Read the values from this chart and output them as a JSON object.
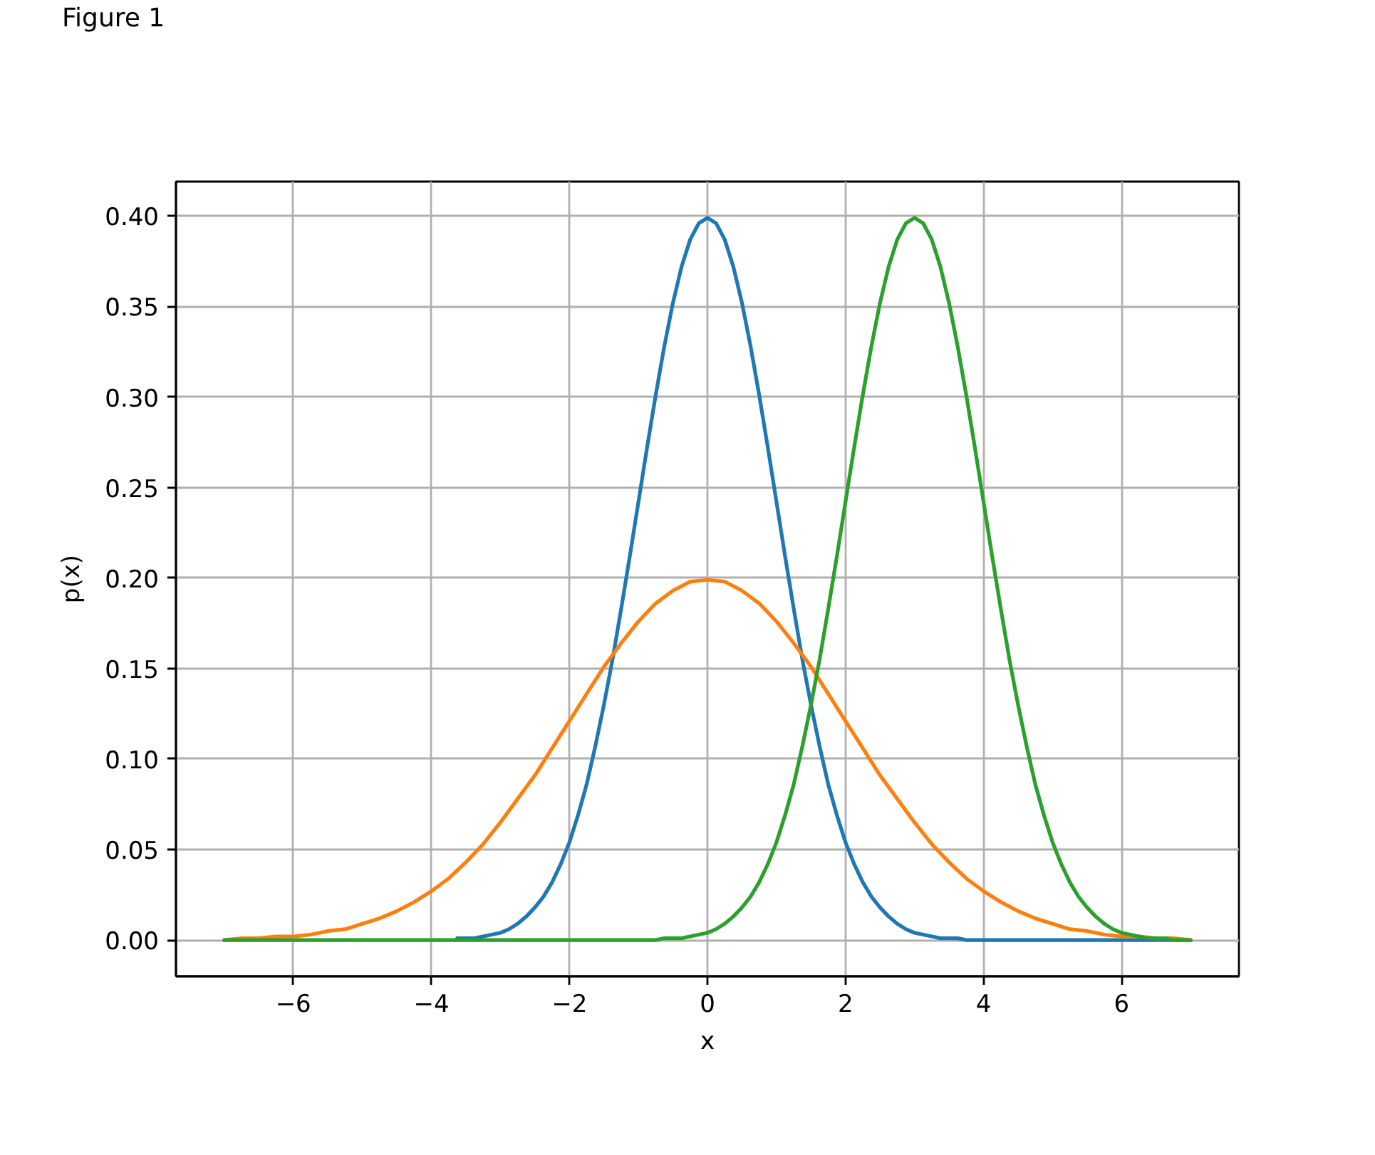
{
  "chart_data": {
    "type": "line",
    "annotations": [
      "Figure 1"
    ],
    "xlabel": "x",
    "ylabel": "p(x)",
    "x": [
      -7,
      -6.875,
      -6.75,
      -6.625,
      -6.5,
      -6.375,
      -6.25,
      -6.125,
      -6,
      -5.875,
      -5.75,
      -5.625,
      -5.5,
      -5.375,
      -5.25,
      -5.125,
      -5,
      -4.875,
      -4.75,
      -4.625,
      -4.5,
      -4.375,
      -4.25,
      -4.125,
      -4,
      -3.875,
      -3.75,
      -3.625,
      -3.5,
      -3.375,
      -3.25,
      -3.125,
      -3,
      -2.875,
      -2.75,
      -2.625,
      -2.5,
      -2.375,
      -2.25,
      -2.125,
      -2,
      -1.875,
      -1.75,
      -1.625,
      -1.5,
      -1.375,
      -1.25,
      -1.125,
      -1,
      -0.875,
      -0.75,
      -0.625,
      -0.5,
      -0.375,
      -0.25,
      -0.125,
      0,
      0.125,
      0.25,
      0.375,
      0.5,
      0.625,
      0.75,
      0.875,
      1,
      1.125,
      1.25,
      1.375,
      1.5,
      1.625,
      1.75,
      1.875,
      2,
      2.125,
      2.25,
      2.375,
      2.5,
      2.625,
      2.75,
      2.875,
      3,
      3.125,
      3.25,
      3.375,
      3.5,
      3.625,
      3.75,
      3.875,
      4,
      4.125,
      4.25,
      4.375,
      4.5,
      4.625,
      4.75,
      4.875,
      5,
      5.125,
      5.25,
      5.375,
      5.5,
      5.625,
      5.75,
      5.875,
      6,
      6.125,
      6.25,
      6.375,
      6.5,
      6.625,
      6.75,
      6.875,
      7
    ],
    "series": [
      {
        "color": "#1f77b4",
        "values": [
          null,
          null,
          null,
          null,
          null,
          null,
          null,
          null,
          null,
          null,
          null,
          null,
          null,
          null,
          null,
          null,
          null,
          null,
          null,
          null,
          null,
          null,
          null,
          null,
          null,
          null,
          null,
          0.001,
          0.001,
          0.001,
          0.002,
          0.003,
          0.004,
          0.006,
          0.009,
          0.013,
          0.018,
          0.024,
          0.032,
          0.042,
          0.054,
          0.069,
          0.086,
          0.107,
          0.13,
          0.155,
          0.183,
          0.212,
          0.242,
          0.272,
          0.301,
          0.328,
          0.352,
          0.372,
          0.387,
          0.396,
          0.399,
          0.396,
          0.387,
          0.372,
          0.352,
          0.328,
          0.301,
          0.272,
          0.242,
          0.212,
          0.183,
          0.155,
          0.13,
          0.107,
          0.086,
          0.069,
          0.054,
          0.042,
          0.032,
          0.024,
          0.018,
          0.013,
          0.009,
          0.006,
          0.004,
          0.003,
          0.002,
          0.001,
          0.001,
          0.001,
          0,
          0,
          0,
          0,
          0,
          0,
          0,
          0,
          0,
          0,
          0,
          0,
          0,
          0,
          0,
          0,
          0,
          0,
          0,
          0,
          0,
          0,
          0,
          0,
          0,
          0,
          0
        ]
      },
      {
        "color": "#ff7f0e",
        "x": [
          -7,
          -6.75,
          -6.5,
          -6.25,
          -6,
          -5.75,
          -5.5,
          -5.25,
          -5,
          -4.75,
          -4.5,
          -4.25,
          -4,
          -3.75,
          -3.5,
          -3.25,
          -3,
          -2.75,
          -2.5,
          -2.25,
          -2,
          -1.75,
          -1.5,
          -1.25,
          -1,
          -0.75,
          -0.5,
          -0.25,
          0,
          0.25,
          0.5,
          0.75,
          1,
          1.25,
          1.5,
          1.75,
          2,
          2.25,
          2.5,
          2.75,
          3,
          3.25,
          3.5,
          3.75,
          4,
          4.25,
          4.5,
          4.75,
          5,
          5.25,
          5.5,
          5.75,
          6,
          6.25,
          6.5,
          6.75,
          7
        ],
        "values": [
          0,
          0.001,
          0.001,
          0.002,
          0.002,
          0.003,
          0.005,
          0.006,
          0.009,
          0.012,
          0.016,
          0.021,
          0.027,
          0.034,
          0.043,
          0.053,
          0.065,
          0.078,
          0.091,
          0.106,
          0.121,
          0.136,
          0.151,
          0.164,
          0.176,
          0.186,
          0.193,
          0.198,
          0.199,
          0.198,
          0.193,
          0.186,
          0.176,
          0.164,
          0.151,
          0.136,
          0.121,
          0.106,
          0.091,
          0.078,
          0.065,
          0.053,
          0.043,
          0.034,
          0.027,
          0.021,
          0.016,
          0.012,
          0.009,
          0.006,
          0.005,
          0.003,
          0.002,
          0.002,
          0.001,
          0.001,
          0
        ]
      },
      {
        "color": "#2ca02c",
        "values": [
          0,
          0,
          0,
          0,
          0,
          0,
          0,
          0,
          0,
          0,
          0,
          0,
          0,
          0,
          0,
          0,
          0,
          0,
          0,
          0,
          0,
          0,
          0,
          0,
          0,
          0,
          0,
          0,
          0,
          0,
          0,
          0,
          0,
          0,
          0,
          0,
          0,
          0,
          0,
          0,
          0,
          0,
          0,
          0,
          0,
          0,
          0,
          0,
          0,
          0,
          0,
          0.001,
          0.001,
          0.001,
          0.002,
          0.003,
          0.004,
          0.006,
          0.009,
          0.013,
          0.018,
          0.024,
          0.032,
          0.042,
          0.054,
          0.069,
          0.086,
          0.107,
          0.13,
          0.155,
          0.183,
          0.212,
          0.242,
          0.272,
          0.301,
          0.328,
          0.352,
          0.372,
          0.387,
          0.396,
          0.399,
          0.396,
          0.387,
          0.372,
          0.352,
          0.328,
          0.301,
          0.272,
          0.242,
          0.212,
          0.183,
          0.155,
          0.13,
          0.107,
          0.086,
          0.069,
          0.054,
          0.042,
          0.032,
          0.024,
          0.018,
          0.013,
          0.009,
          0.006,
          0.004,
          0.003,
          0.002,
          0.001,
          0.001,
          0.001,
          0,
          0,
          0
        ]
      }
    ],
    "xlim": [
      -7.7,
      7.7
    ],
    "xticks": [
      {
        "value": -6,
        "label": "−6"
      },
      {
        "value": -4,
        "label": "−4"
      },
      {
        "value": -2,
        "label": "−2"
      },
      0,
      2,
      4,
      6
    ],
    "ylim": [
      -0.02,
      0.419
    ],
    "yticks": [
      {
        "value": 0,
        "label": "0.00"
      },
      0.05,
      {
        "value": 0.1,
        "label": "0.10"
      },
      0.15,
      {
        "value": 0.2,
        "label": "0.20"
      },
      0.25,
      {
        "value": 0.3,
        "label": "0.30"
      },
      0.35,
      {
        "value": 0.4,
        "label": "0.40"
      }
    ],
    "grid": true
  }
}
